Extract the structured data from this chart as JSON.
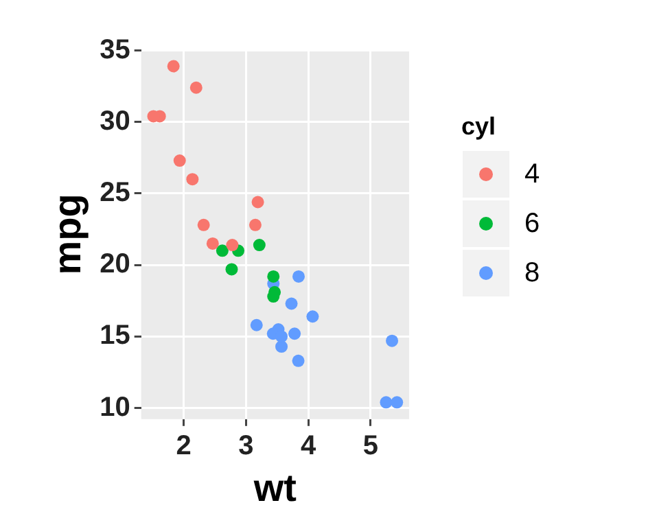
{
  "chart_data": {
    "type": "scatter",
    "xlabel": "wt",
    "ylabel": "mpg",
    "legend_title": "cyl",
    "legend": "right",
    "grid": true,
    "marker": "circle",
    "xlim": [
      1.317,
      5.62
    ],
    "ylim": [
      9.225,
      35.075
    ],
    "xticks": [
      2,
      3,
      4,
      5
    ],
    "yticks": [
      10,
      15,
      20,
      25,
      30,
      35
    ],
    "series": [
      {
        "name": "4",
        "color": "#f8766d",
        "x": [
          2.32,
          3.19,
          3.15,
          2.2,
          1.615,
          1.835,
          2.465,
          1.935,
          2.14,
          1.513,
          2.78
        ],
        "values": [
          22.8,
          24.4,
          22.8,
          32.4,
          30.4,
          33.9,
          21.5,
          27.3,
          26.0,
          30.4,
          21.4
        ]
      },
      {
        "name": "6",
        "color": "#00ba38",
        "x": [
          2.62,
          2.875,
          3.215,
          3.46,
          3.44,
          3.44,
          2.77
        ],
        "values": [
          21.0,
          21.0,
          21.4,
          18.1,
          19.2,
          17.8,
          19.7
        ]
      },
      {
        "name": "8",
        "color": "#619cff",
        "x": [
          3.44,
          3.57,
          4.07,
          3.73,
          3.78,
          5.25,
          5.424,
          5.345,
          3.52,
          3.435,
          3.84,
          3.845,
          3.17,
          3.57
        ],
        "values": [
          18.7,
          14.3,
          16.4,
          17.3,
          15.2,
          10.4,
          10.4,
          14.7,
          15.5,
          15.2,
          13.3,
          19.2,
          15.8,
          15.0
        ]
      }
    ]
  }
}
